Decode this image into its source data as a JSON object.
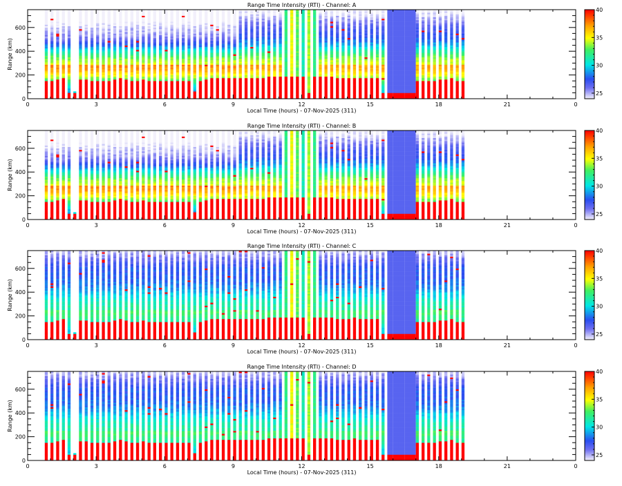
{
  "chart_data": {
    "type": "heatmap",
    "xlabel": "Local Time (hours) - 07-Nov-2025 (311)",
    "ylabel": "Range (km)",
    "xlim": [
      0,
      24
    ],
    "ylim": [
      0,
      750
    ],
    "x_ticks": [
      "0",
      "3",
      "6",
      "9",
      "12",
      "15",
      "18",
      "21",
      "0"
    ],
    "y_ticks": [
      "0",
      "200",
      "400",
      "600"
    ],
    "colorbar": {
      "range": [
        24,
        40
      ],
      "ticks": [
        "25",
        "30",
        "35",
        "40"
      ]
    },
    "column_times_hours": [
      0.75,
      1.0,
      1.25,
      1.5,
      1.75,
      2.0,
      2.25,
      2.5,
      2.75,
      3.0,
      3.25,
      3.5,
      3.75,
      4.0,
      4.25,
      4.5,
      4.75,
      5.0,
      5.25,
      5.5,
      5.75,
      6.0,
      6.25,
      6.5,
      6.75,
      7.0,
      7.25,
      7.5,
      7.75,
      8.0,
      8.25,
      8.5,
      8.75,
      9.0,
      9.25,
      9.5,
      9.75,
      10.0,
      10.25,
      10.5,
      10.75,
      11.0,
      11.25,
      11.5,
      11.75,
      12.0,
      12.25,
      12.5,
      12.75,
      13.0,
      13.25,
      13.5,
      13.75,
      14.0,
      14.25,
      14.5,
      14.75,
      15.0,
      15.25,
      15.5,
      15.75,
      16.0,
      16.25,
      16.5,
      16.75,
      17.0,
      17.25,
      17.5,
      17.75,
      18.0,
      18.25,
      18.5,
      18.75,
      19.0
    ],
    "strong_echo_floor_km": [
      150,
      150,
      160,
      165,
      50,
      50,
      155,
      160,
      150,
      150,
      150,
      150,
      160,
      165,
      155,
      150,
      150,
      155,
      150,
      150,
      150,
      145,
      140,
      140,
      140,
      140,
      60,
      140,
      160,
      165,
      165,
      170,
      170,
      170,
      175,
      175,
      175,
      175,
      175,
      180,
      180,
      180,
      185,
      185,
      185,
      185,
      50,
      180,
      180,
      180,
      180,
      175,
      175,
      175,
      175,
      170,
      170,
      165,
      165,
      40,
      40,
      40,
      40,
      40,
      40,
      150,
      150,
      150,
      150,
      155,
      160,
      165,
      150,
      140
    ],
    "panels": [
      {
        "title": "Range Time Intensity (RTI) - Channel: A",
        "top_value": 24.5,
        "top_value_late": 26.5,
        "layer_peak_value": 34.5,
        "layer_peak_km": 280
      },
      {
        "title": "Range Time Intensity (RTI) - Channel: B",
        "top_value": 24.5,
        "top_value_late": 26.5,
        "layer_peak_value": 34.5,
        "layer_peak_km": 280
      },
      {
        "title": "Range Time Intensity (RTI) - Channel: C",
        "top_value": 27.5,
        "top_value_late": 27.5,
        "layer_peak_value": 31.5,
        "layer_peak_km": 250
      },
      {
        "title": "Range Time Intensity (RTI) - Channel: D",
        "top_value": 27.5,
        "top_value_late": 27.5,
        "layer_peak_value": 31.5,
        "layer_peak_km": 250
      }
    ]
  }
}
